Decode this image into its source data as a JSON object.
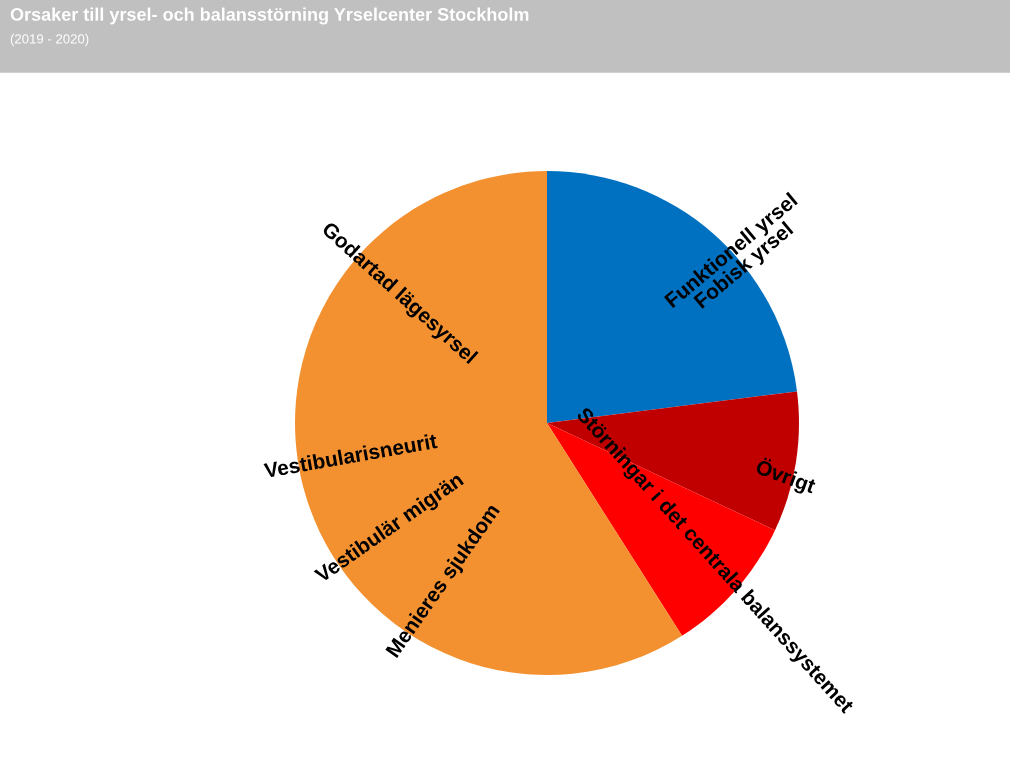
{
  "chart_data": {
    "type": "pie",
    "title": "Orsaker till yrsel- och balansstörning Yrselcenter Stockholm",
    "subtitle": "(2019 - 2020)",
    "categories": [
      "Funktionell yrsel\nFobisk yrsel",
      "Övrigt",
      "Störningar i det centrala balanssystemet",
      "Godartad lägesyrsel"
    ],
    "values": [
      23,
      9,
      9,
      59
    ],
    "colors": [
      "#0070c0",
      "#c00000",
      "#ff0000",
      "#f39130"
    ],
    "annotations": [
      "Vestibularisneurit",
      "Vestibulär migrän",
      "Menieres sjukdom"
    ]
  }
}
